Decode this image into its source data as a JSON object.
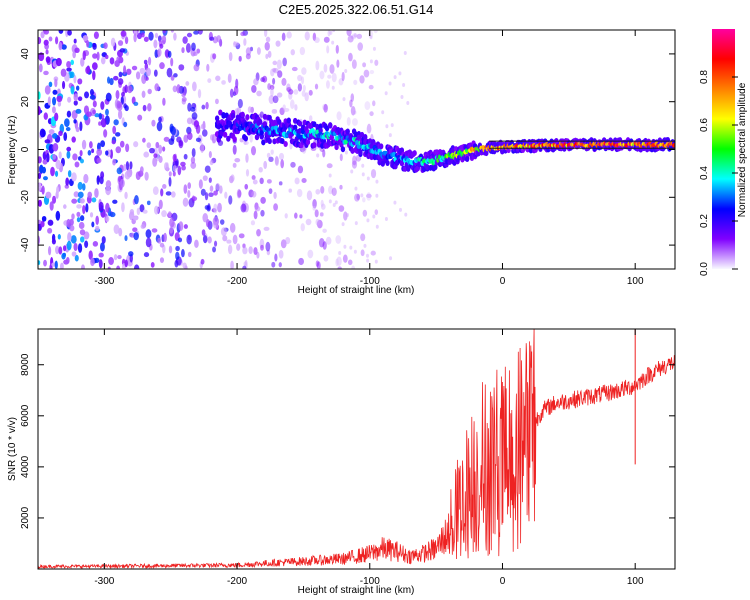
{
  "title": "C2E5.2025.322.06.51.G14",
  "chart_data": [
    {
      "type": "heatmap",
      "xlabel": "Height of straight line (km)",
      "ylabel": "Frequency (Hz)",
      "xlim": [
        -350,
        130
      ],
      "ylim": [
        -50,
        50
      ],
      "xticks": [
        -300,
        -200,
        -100,
        0,
        100
      ],
      "xtick_labels": [
        "-300",
        "-200",
        "-100",
        "0",
        "100"
      ],
      "yticks": [
        -40,
        -20,
        0,
        20,
        40
      ],
      "ytick_labels": [
        "-40",
        "-20",
        "0",
        "20",
        "40"
      ],
      "colorbar": {
        "label": "Normalized spectral amplitude",
        "range": [
          0,
          1
        ],
        "ticks": [
          0.0,
          0.2,
          0.4,
          0.6,
          0.8
        ],
        "tick_labels": [
          "0.0",
          "0.2",
          "0.4",
          "0.6",
          "0.8"
        ],
        "colors": [
          "#f8f8ff",
          "#8000ff",
          "#0000ff",
          "#00ffff",
          "#00ff00",
          "#ffff00",
          "#ff8000",
          "#ff0000",
          "#ff00a0"
        ]
      },
      "ridge": {
        "x": [
          -215,
          -190,
          -160,
          -130,
          -110,
          -90,
          -70,
          -55,
          -40,
          -20,
          0,
          40,
          80,
          100,
          130
        ],
        "freq": [
          10,
          9,
          7,
          6,
          3,
          -2,
          -5,
          -5,
          -3,
          0,
          1,
          2,
          2,
          2,
          2
        ],
        "amplitude": [
          0.2,
          0.3,
          0.35,
          0.4,
          0.4,
          0.35,
          0.35,
          0.45,
          0.55,
          0.7,
          0.8,
          0.85,
          0.9,
          0.8,
          0.9
        ]
      },
      "noise_extent_x": [
        -350,
        -135
      ]
    },
    {
      "type": "line",
      "xlabel": "Height of straight line (km)",
      "ylabel": "SNR (10 * v/v)",
      "xlim": [
        -350,
        130
      ],
      "ylim": [
        0,
        9400
      ],
      "xticks": [
        -300,
        -200,
        -100,
        0,
        100
      ],
      "xtick_labels": [
        "-300",
        "-200",
        "-100",
        "0",
        "100"
      ],
      "yticks": [
        2000,
        4000,
        6000,
        8000
      ],
      "ytick_labels": [
        "2000",
        "4000",
        "6000",
        "8000"
      ],
      "color": "#ee2222",
      "series": [
        {
          "name": "SNR",
          "x": [
            -350,
            -300,
            -250,
            -200,
            -170,
            -150,
            -120,
            -100,
            -90,
            -80,
            -70,
            -60,
            -50,
            -40,
            -35,
            -30,
            -25,
            -20,
            -15,
            -10,
            -5,
            0,
            5,
            10,
            15,
            20,
            25,
            30,
            40,
            60,
            80,
            95,
            100,
            105,
            110,
            120,
            130
          ],
          "y": [
            100,
            110,
            130,
            150,
            250,
            300,
            400,
            600,
            800,
            700,
            500,
            600,
            800,
            1500,
            2200,
            2700,
            3200,
            3600,
            4000,
            4100,
            4300,
            4100,
            4300,
            4700,
            4900,
            5300,
            5800,
            6200,
            6500,
            6700,
            6900,
            7100,
            7200,
            7400,
            7600,
            7900,
            8100
          ]
        }
      ],
      "spikes": [
        {
          "x": 100,
          "y_min": 4100,
          "y_max": 9400
        }
      ]
    }
  ]
}
